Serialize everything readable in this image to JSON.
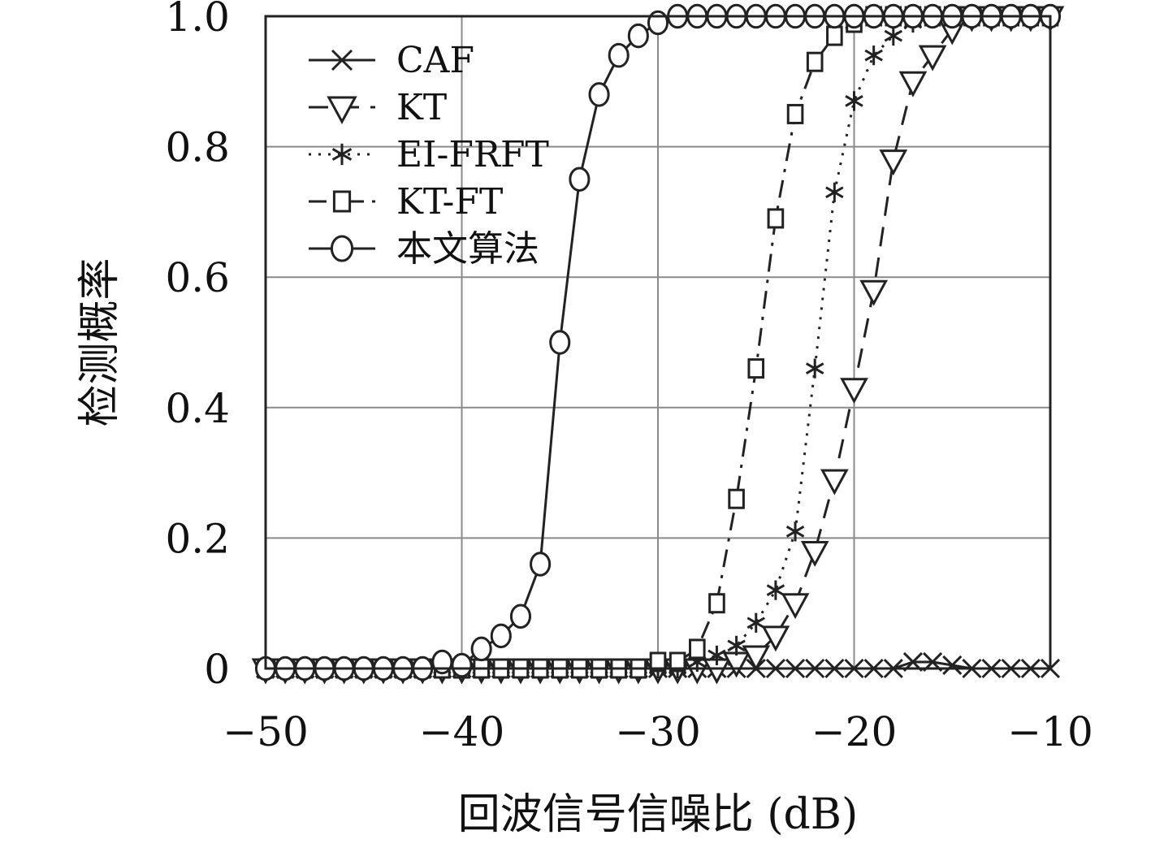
{
  "chart_data": {
    "type": "line",
    "title": "",
    "xlabel": "回波信号信噪比 (dB)",
    "ylabel": "检测概率",
    "xlim": [
      -50,
      -10
    ],
    "ylim": [
      0,
      1.0
    ],
    "x_ticks": [
      -50,
      -40,
      -30,
      -20,
      -10
    ],
    "x_tick_labels": [
      "−50",
      "−40",
      "−30",
      "−20",
      "−10"
    ],
    "y_ticks": [
      0,
      0.2,
      0.4,
      0.6,
      0.8,
      1.0
    ],
    "y_tick_labels": [
      "0",
      "0.2",
      "0.4",
      "0.6",
      "0.8",
      "1.0"
    ],
    "grid": true,
    "legend_position": "top-left",
    "series": [
      {
        "name": "CAF",
        "marker": "x",
        "line": "solid",
        "x": [
          -50,
          -49,
          -48,
          -47,
          -46,
          -45,
          -44,
          -43,
          -42,
          -41,
          -40,
          -39,
          -38,
          -37,
          -36,
          -35,
          -34,
          -33,
          -32,
          -31,
          -30,
          -29,
          -28,
          -27,
          -26,
          -25,
          -24,
          -23,
          -22,
          -21,
          -20,
          -19,
          -18,
          -17,
          -16,
          -15,
          -14,
          -13,
          -12,
          -11,
          -10
        ],
        "y": [
          0,
          0,
          0,
          0,
          0,
          0,
          0,
          0,
          0,
          0,
          0,
          0,
          0,
          0,
          0,
          0,
          0,
          0,
          0,
          0,
          0,
          0,
          0,
          0,
          0,
          0,
          0,
          0,
          0,
          0,
          0,
          0,
          0,
          0.01,
          0.01,
          0.005,
          0,
          0,
          0,
          0,
          0
        ]
      },
      {
        "name": "KT",
        "marker": "triangle-down",
        "line": "dashed",
        "x": [
          -50,
          -49,
          -48,
          -47,
          -46,
          -45,
          -44,
          -43,
          -42,
          -41,
          -40,
          -39,
          -38,
          -37,
          -36,
          -35,
          -34,
          -33,
          -32,
          -31,
          -30,
          -29,
          -28,
          -27,
          -26,
          -25,
          -24,
          -23,
          -22,
          -21,
          -20,
          -19,
          -18,
          -17,
          -16,
          -15,
          -14,
          -13,
          -12,
          -11,
          -10
        ],
        "y": [
          0,
          0,
          0,
          0,
          0,
          0,
          0,
          0,
          0,
          0,
          0,
          0,
          0,
          0,
          0,
          0,
          0,
          0,
          0,
          0,
          0,
          0,
          0,
          0,
          0.01,
          0.02,
          0.05,
          0.1,
          0.18,
          0.29,
          0.43,
          0.58,
          0.78,
          0.9,
          0.94,
          0.98,
          1.0,
          1.0,
          1.0,
          1.0,
          1.0
        ]
      },
      {
        "name": "EI-FRFT",
        "marker": "asterisk",
        "line": "dotted",
        "x": [
          -50,
          -49,
          -48,
          -47,
          -46,
          -45,
          -44,
          -43,
          -42,
          -41,
          -40,
          -39,
          -38,
          -37,
          -36,
          -35,
          -34,
          -33,
          -32,
          -31,
          -30,
          -29,
          -28,
          -27,
          -26,
          -25,
          -24,
          -23,
          -22,
          -21,
          -20,
          -19,
          -18,
          -17,
          -16,
          -15,
          -14,
          -13,
          -12,
          -11,
          -10
        ],
        "y": [
          0,
          0,
          0,
          0,
          0,
          0,
          0,
          0,
          0,
          0,
          0,
          0,
          0,
          0,
          0,
          0,
          0,
          0,
          0,
          0,
          0,
          0,
          0.01,
          0.02,
          0.035,
          0.07,
          0.12,
          0.21,
          0.46,
          0.73,
          0.87,
          0.94,
          0.97,
          0.99,
          1.0,
          1.0,
          1.0,
          1.0,
          1.0,
          1.0,
          1.0
        ]
      },
      {
        "name": "KT-FT",
        "marker": "square",
        "line": "dashdot",
        "x": [
          -50,
          -49,
          -48,
          -47,
          -46,
          -45,
          -44,
          -43,
          -42,
          -41,
          -40,
          -39,
          -38,
          -37,
          -36,
          -35,
          -34,
          -33,
          -32,
          -31,
          -30,
          -29,
          -28,
          -27,
          -26,
          -25,
          -24,
          -23,
          -22,
          -21,
          -20,
          -19,
          -18,
          -17,
          -16,
          -15,
          -14,
          -13,
          -12,
          -11,
          -10
        ],
        "y": [
          0,
          0,
          0,
          0,
          0,
          0,
          0,
          0,
          0,
          0,
          0,
          0,
          0,
          0,
          0,
          0,
          0,
          0,
          0,
          0,
          0.01,
          0.01,
          0.03,
          0.1,
          0.26,
          0.46,
          0.69,
          0.85,
          0.93,
          0.97,
          0.99,
          1.0,
          1.0,
          1.0,
          1.0,
          1.0,
          1.0,
          1.0,
          1.0,
          1.0,
          1.0
        ]
      },
      {
        "name": "本文算法",
        "marker": "circle",
        "line": "solid",
        "x": [
          -50,
          -49,
          -48,
          -47,
          -46,
          -45,
          -44,
          -43,
          -42,
          -41,
          -40,
          -39,
          -38,
          -37,
          -36,
          -35,
          -34,
          -33,
          -32,
          -31,
          -30,
          -29,
          -28,
          -27,
          -26,
          -25,
          -24,
          -23,
          -22,
          -21,
          -20,
          -19,
          -18,
          -17,
          -16,
          -15,
          -14,
          -13,
          -12,
          -11,
          -10
        ],
        "y": [
          0,
          0,
          0,
          0,
          0,
          0,
          0,
          0,
          0,
          0.01,
          0.005,
          0.03,
          0.05,
          0.08,
          0.16,
          0.5,
          0.75,
          0.88,
          0.94,
          0.97,
          0.99,
          1.0,
          1.0,
          1.0,
          1.0,
          1.0,
          1.0,
          1.0,
          1.0,
          1.0,
          1.0,
          1.0,
          1.0,
          1.0,
          1.0,
          1.0,
          1.0,
          1.0,
          1.0,
          1.0,
          1.0
        ]
      }
    ]
  }
}
